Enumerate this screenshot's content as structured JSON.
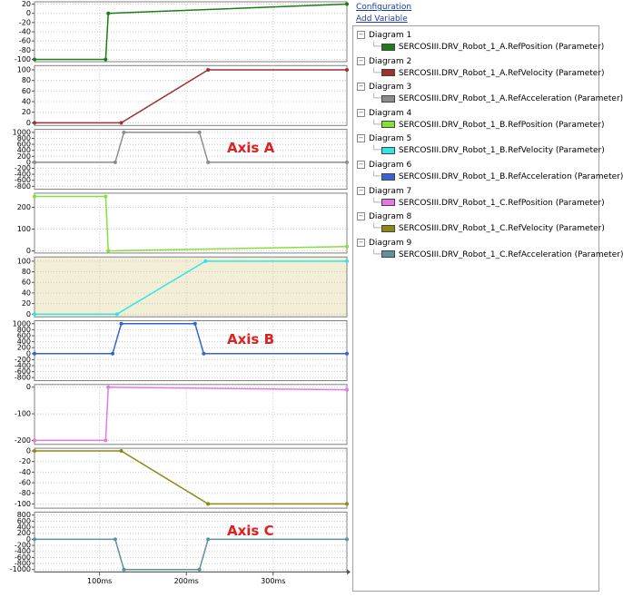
{
  "sidebar": {
    "links": [
      "Configuration",
      "Add Variable"
    ]
  },
  "chart_data": [
    {
      "type": "line",
      "title": "Diagram 1",
      "x": [
        25,
        107,
        110,
        385
      ],
      "series": [
        {
          "name": "SERCOSIII.DRV_Robot_1_A.RefPosition (Parameter)",
          "color": "#1a7d1a",
          "values": [
            -100,
            -100,
            0,
            20
          ]
        }
      ],
      "xlim": [
        25,
        385
      ],
      "xticks": [
        {
          "value": 100,
          "label": "100ms"
        },
        {
          "value": 200,
          "label": "200ms"
        },
        {
          "value": 300,
          "label": "300ms"
        }
      ],
      "ylim": [
        -105,
        25
      ],
      "yticks": [
        20,
        0,
        -20,
        -40,
        -60,
        -80,
        -100
      ],
      "grid": true
    },
    {
      "type": "line",
      "title": "Diagram 2",
      "x": [
        25,
        125,
        225,
        385
      ],
      "series": [
        {
          "name": "SERCOSIII.DRV_Robot_1_A.RefVelocity (Parameter)",
          "color": "#a0302c",
          "values": [
            0,
            0,
            100,
            100
          ]
        }
      ],
      "xlim": [
        25,
        385
      ],
      "xticks": [
        {
          "value": 100,
          "label": "100ms"
        },
        {
          "value": 200,
          "label": "200ms"
        },
        {
          "value": 300,
          "label": "300ms"
        }
      ],
      "ylim": [
        -5,
        108
      ],
      "yticks": [
        100,
        80,
        60,
        40,
        20,
        0
      ],
      "grid": true
    },
    {
      "type": "line",
      "title": "Diagram 3",
      "x": [
        25,
        118,
        128,
        215,
        225,
        385
      ],
      "series": [
        {
          "name": "SERCOSIII.DRV_Robot_1_A.RefAcceleration (Parameter)",
          "color": "#8c8c8c",
          "values": [
            0,
            0,
            1000,
            1000,
            0,
            0
          ]
        }
      ],
      "xlim": [
        25,
        385
      ],
      "xticks": [
        {
          "value": 100,
          "label": "100ms"
        },
        {
          "value": 200,
          "label": "200ms"
        },
        {
          "value": 300,
          "label": "300ms"
        }
      ],
      "ylim": [
        -900,
        1100
      ],
      "yticks": [
        1000,
        800,
        600,
        400,
        200,
        0,
        -200,
        -400,
        -600,
        -800
      ],
      "grid": true,
      "annotation": "Axis A"
    },
    {
      "type": "line",
      "title": "Diagram 4",
      "x": [
        25,
        107,
        110,
        385
      ],
      "series": [
        {
          "name": "SERCOSIII.DRV_Robot_1_B.RefPosition (Parameter)",
          "color": "#86e03a",
          "values": [
            250,
            250,
            0,
            20
          ]
        }
      ],
      "xlim": [
        25,
        385
      ],
      "xticks": [
        {
          "value": 100,
          "label": "100ms"
        },
        {
          "value": 200,
          "label": "200ms"
        },
        {
          "value": 300,
          "label": "300ms"
        }
      ],
      "ylim": [
        -10,
        265
      ],
      "yticks": [
        200,
        100,
        0
      ],
      "grid": true
    },
    {
      "type": "line",
      "title": "Diagram 5",
      "x": [
        25,
        120,
        222,
        385
      ],
      "series": [
        {
          "name": "SERCOSIII.DRV_Robot_1_B.RefVelocity (Parameter)",
          "color": "#2ee6e6",
          "values": [
            0,
            0,
            100,
            100
          ]
        }
      ],
      "xlim": [
        25,
        385
      ],
      "xticks": [
        {
          "value": 100,
          "label": "100ms"
        },
        {
          "value": 200,
          "label": "200ms"
        },
        {
          "value": 300,
          "label": "300ms"
        }
      ],
      "ylim": [
        -5,
        108
      ],
      "yticks": [
        100,
        80,
        60,
        40,
        20,
        0
      ],
      "grid": true,
      "background": "#f3eed6"
    },
    {
      "type": "line",
      "title": "Diagram 6",
      "x": [
        25,
        115,
        125,
        210,
        220,
        385
      ],
      "series": [
        {
          "name": "SERCOSIII.DRV_Robot_1_B.RefAcceleration (Parameter)",
          "color": "#3563d0",
          "values": [
            0,
            0,
            1000,
            1000,
            0,
            0
          ]
        }
      ],
      "xlim": [
        25,
        385
      ],
      "xticks": [
        {
          "value": 100,
          "label": "100ms"
        },
        {
          "value": 200,
          "label": "200ms"
        },
        {
          "value": 300,
          "label": "300ms"
        }
      ],
      "ylim": [
        -900,
        1100
      ],
      "yticks": [
        1000,
        800,
        600,
        400,
        200,
        0,
        -200,
        -400,
        -600,
        -800
      ],
      "grid": true,
      "annotation": "Axis B"
    },
    {
      "type": "line",
      "title": "Diagram 7",
      "x": [
        25,
        107,
        110,
        385
      ],
      "series": [
        {
          "name": "SERCOSIII.DRV_Robot_1_C.RefPosition (Parameter)",
          "color": "#e27ae2",
          "values": [
            -200,
            -200,
            0,
            -10
          ]
        }
      ],
      "xlim": [
        25,
        385
      ],
      "xticks": [
        {
          "value": 100,
          "label": "100ms"
        },
        {
          "value": 200,
          "label": "200ms"
        },
        {
          "value": 300,
          "label": "300ms"
        }
      ],
      "ylim": [
        -215,
        10
      ],
      "yticks": [
        0,
        -100,
        -200
      ],
      "grid": true
    },
    {
      "type": "line",
      "title": "Diagram 8",
      "x": [
        25,
        125,
        225,
        385
      ],
      "series": [
        {
          "name": "SERCOSIII.DRV_Robot_1_C.RefVelocity (Parameter)",
          "color": "#8c8a14",
          "values": [
            0,
            0,
            -100,
            -100
          ]
        }
      ],
      "xlim": [
        25,
        385
      ],
      "xticks": [
        {
          "value": 100,
          "label": "100ms"
        },
        {
          "value": 200,
          "label": "200ms"
        },
        {
          "value": 300,
          "label": "300ms"
        }
      ],
      "ylim": [
        -108,
        5
      ],
      "yticks": [
        0,
        -20,
        -40,
        -60,
        -80,
        -100
      ],
      "grid": true
    },
    {
      "type": "line",
      "title": "Diagram 9",
      "x": [
        25,
        118,
        128,
        215,
        225,
        385
      ],
      "series": [
        {
          "name": "SERCOSIII.DRV_Robot_1_C.RefAcceleration (Parameter)",
          "color": "#5f929c",
          "values": [
            0,
            0,
            -1000,
            -1000,
            0,
            0
          ]
        }
      ],
      "xlim": [
        25,
        385
      ],
      "xticks": [
        {
          "value": 100,
          "label": "100ms"
        },
        {
          "value": 200,
          "label": "200ms"
        },
        {
          "value": 300,
          "label": "300ms"
        }
      ],
      "ylim": [
        -1080,
        900
      ],
      "yticks": [
        800,
        600,
        400,
        200,
        0,
        -200,
        -400,
        -600,
        -800,
        -1000
      ],
      "grid": true,
      "annotation": "Axis C"
    }
  ]
}
